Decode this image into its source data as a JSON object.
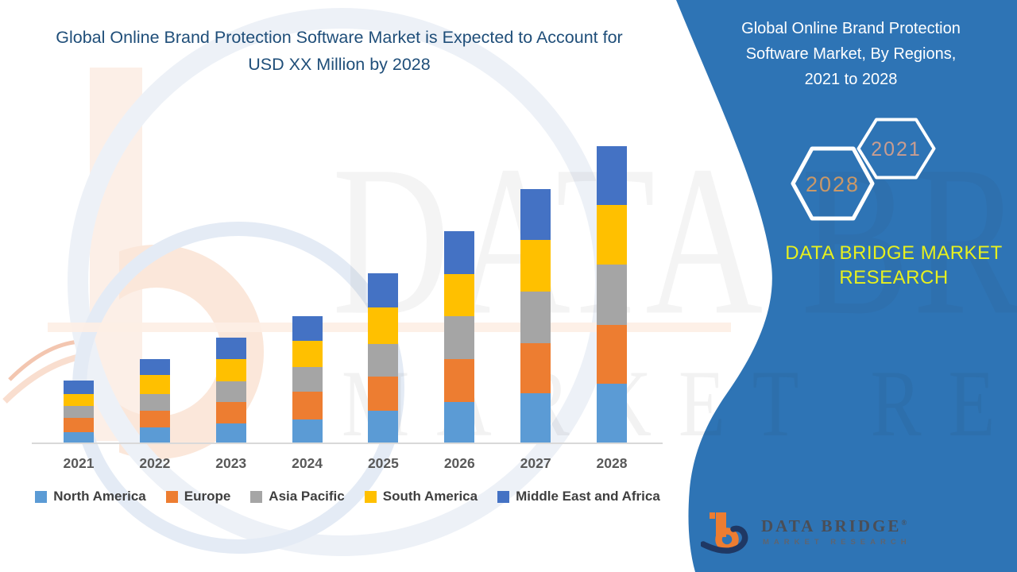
{
  "page": {
    "title_lines": [
      "Global Online Brand Protection Software Market is Expected to Account for",
      "USD XX Million by 2028"
    ]
  },
  "side_panel": {
    "heading_lines": [
      "Global Online Brand Protection",
      "Software Market, By Regions,",
      "2021 to 2028"
    ],
    "hexagon_front_label": "2028",
    "hexagon_back_label": "2021",
    "brand_lines": [
      "DATA BRIDGE MARKET",
      "RESEARCH"
    ],
    "colors": {
      "panel_blue": "#2E74B5",
      "brand_yellow": "#E7F01E",
      "hexagon_border": "#FFFFFF",
      "hexagon_front_text": "#C99868",
      "hexagon_back_text": "#C99D90"
    }
  },
  "logo": {
    "name_top": "DATA BRIDGE",
    "registered_mark": "®",
    "name_bottom": "MARKET RESEARCH",
    "colors": {
      "orange": "#ED7D31",
      "navy": "#1F3864"
    }
  },
  "watermark": {
    "line1": "DATA BRIDGE",
    "line2": "MARKET RESEARCH"
  },
  "chart_data": {
    "type": "bar",
    "stacked": true,
    "title": "Global Online Brand Protection Software Market, By Regions, 2021 to 2028",
    "xlabel": "",
    "ylabel": "",
    "categories": [
      "2021",
      "2022",
      "2023",
      "2024",
      "2025",
      "2026",
      "2027",
      "2028"
    ],
    "series": [
      {
        "name": "North America",
        "color": "#5B9BD5",
        "values": [
          14,
          20,
          25,
          30,
          41,
          52,
          63,
          75
        ]
      },
      {
        "name": "Europe",
        "color": "#ED7D31",
        "values": [
          18,
          21,
          27,
          35,
          43,
          54,
          63,
          74
        ]
      },
      {
        "name": "Asia Pacific",
        "color": "#A5A5A5",
        "values": [
          15,
          21,
          26,
          31,
          41,
          54,
          65,
          76
        ]
      },
      {
        "name": "South America",
        "color": "#FFC000",
        "values": [
          15,
          24,
          28,
          33,
          46,
          53,
          65,
          75
        ]
      },
      {
        "name": "Middle East and Africa",
        "color": "#4472C4",
        "values": [
          17,
          20,
          27,
          31,
          43,
          54,
          64,
          74
        ]
      }
    ],
    "totals": [
      79,
      106,
      133,
      160,
      214,
      267,
      320,
      374
    ],
    "units": "relative units (no numeric y-axis shown; values estimated from segment heights, USD XX Million placeholder)",
    "ylim": [
      0,
      380
    ],
    "grid": false,
    "legend_position": "bottom",
    "bar_order_bottom_to_top": [
      "North America",
      "Europe",
      "Asia Pacific",
      "South America",
      "Middle East and Africa"
    ]
  }
}
